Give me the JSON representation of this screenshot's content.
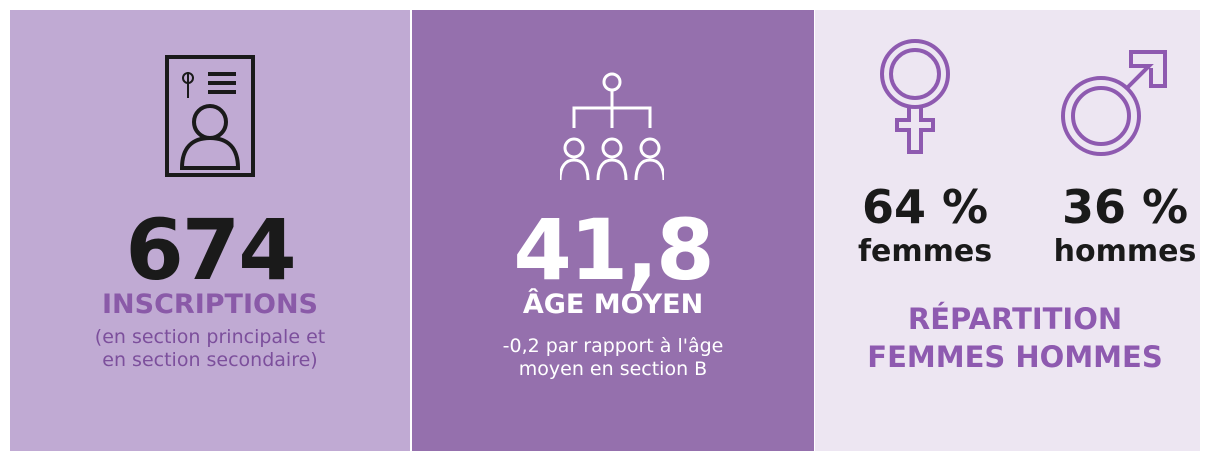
{
  "panels": [
    {
      "value": "674",
      "label": "INSCRIPTIONS",
      "note": "(en section principale et en section secondaire)"
    },
    {
      "value": "41,8",
      "label": "ÂGE MOYEN",
      "note": "-0,2 par rapport à l'âge moyen en section B"
    },
    {
      "items": [
        {
          "value": "64 %",
          "label": "femmes"
        },
        {
          "value": "36 %",
          "label": "hommes"
        }
      ],
      "label": "RÉPARTITION FEMMES HOMMES"
    }
  ]
}
